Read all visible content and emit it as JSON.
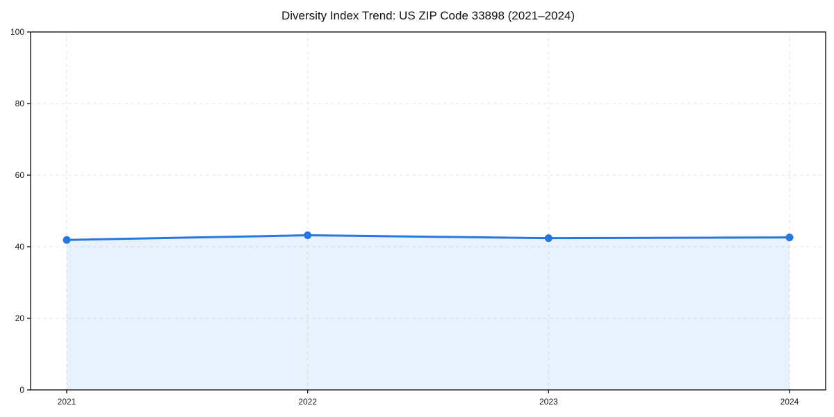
{
  "chart_data": {
    "type": "line",
    "title": "Diversity Index Trend: US ZIP Code 33898 (2021–2024)",
    "x": [
      2021,
      2022,
      2023,
      2024
    ],
    "xtick_labels": [
      "2021",
      "2022",
      "2023",
      "2024"
    ],
    "series": [
      {
        "name": "Diversity Index",
        "values": [
          41.9,
          43.2,
          42.4,
          42.6
        ]
      }
    ],
    "xlabel": "",
    "ylabel": "",
    "ylim": [
      0,
      100
    ],
    "yticks": [
      0,
      20,
      40,
      60,
      80,
      100
    ],
    "grid": true,
    "grid_style": "dashed",
    "legend_position": "none",
    "area_fill": true,
    "marker": "circle",
    "colors": {
      "line": "#2777e0",
      "marker": "#2777e0",
      "area_fill": "#2777e0",
      "area_fill_opacity": 0.1,
      "grid": "#e3e3e3",
      "spine": "#1a1a1a",
      "text": "#1a1a1a",
      "background": "#ffffff"
    }
  }
}
